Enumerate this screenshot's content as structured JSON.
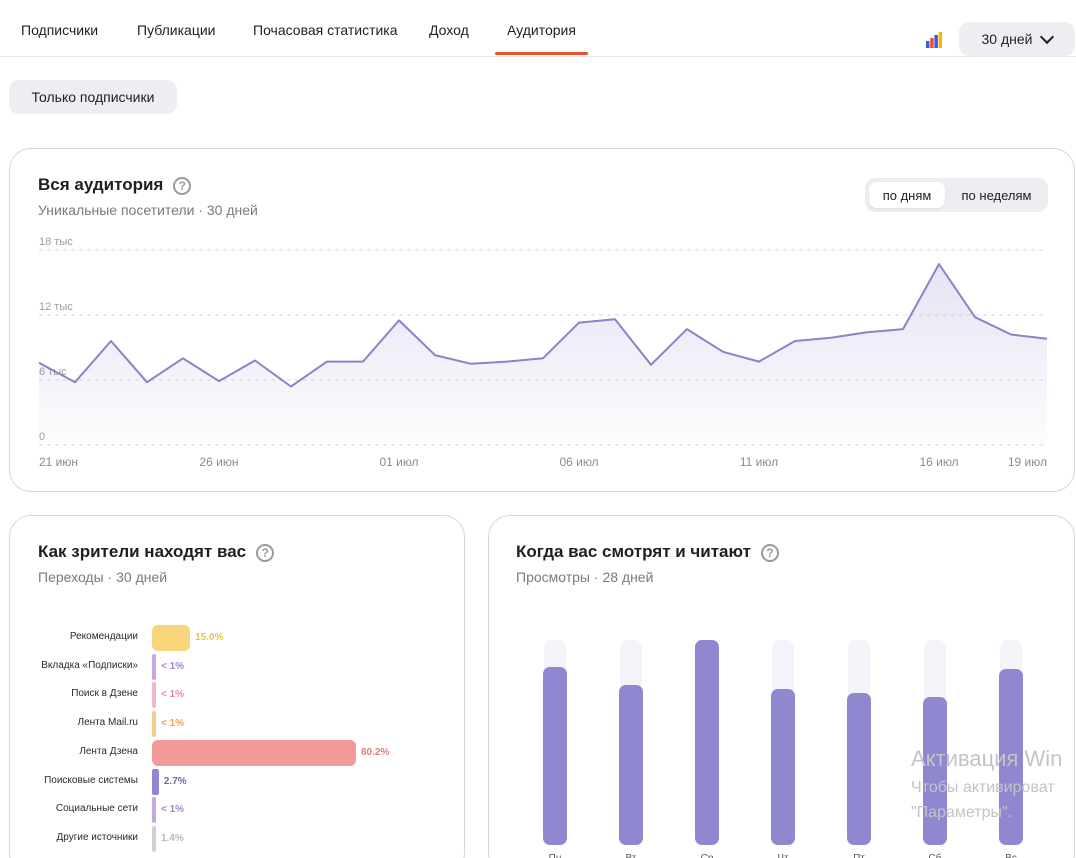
{
  "nav": {
    "tabs": [
      {
        "label": "Подписчики"
      },
      {
        "label": "Публикации"
      },
      {
        "label": "Почасовая статистика"
      },
      {
        "label": "Доход"
      },
      {
        "label": "Аудитория"
      }
    ],
    "active_tab": "Аудитория",
    "period_label": "30 дней"
  },
  "filter": {
    "label": "Только подписчики"
  },
  "audience_card": {
    "title": "Вся аудитория",
    "subtitle": "Уникальные посетители · 30 дней",
    "toggle": [
      {
        "label": "по дням",
        "selected": true
      },
      {
        "label": "по неделям",
        "selected": false
      }
    ],
    "help_icon": "question-circle-icon",
    "chart_data": {
      "type": "area",
      "xlabel": "",
      "ylabel": "",
      "ylim": [
        0,
        18000
      ],
      "y_ticks": [
        "18 тыс",
        "12 тыс",
        "6 тыс",
        "0"
      ],
      "y_tick_values": [
        18000,
        12000,
        6000,
        0
      ],
      "x_tick_labels": [
        "21 июн",
        "26 июн",
        "01 июл",
        "06 июл",
        "11 июл",
        "16 июл",
        "19 июл"
      ],
      "x_tick_index": [
        0,
        5,
        10,
        15,
        20,
        25,
        28
      ],
      "grid": true,
      "color": "#8b82c9",
      "series": [
        {
          "values": [
            7600,
            5800,
            9600,
            5800,
            8000,
            5900,
            7800,
            5400,
            7700,
            7700,
            11500,
            8300,
            7500,
            7700,
            8000,
            11300,
            11600,
            7400,
            10700,
            8600,
            7700,
            9600,
            9900,
            10400,
            10700,
            16700,
            11800,
            10200,
            9800
          ]
        }
      ]
    }
  },
  "sources_card": {
    "title": "Как зрители находят вас",
    "subtitle": "Переходы · 30 дней",
    "chart_data": {
      "type": "bar",
      "orientation": "horizontal",
      "categories": [
        "Рекомендации",
        "Вкладка «Подписки»",
        "Поиск в Дзене",
        "Лента Mail.ru",
        "Лента Дзена",
        "Поисковые системы",
        "Социальные сети",
        "Другие источники"
      ],
      "values": [
        15.0,
        0.5,
        0.5,
        0.5,
        80.2,
        2.7,
        0.5,
        1.4
      ],
      "value_labels": [
        "15.0%",
        "< 1%",
        "< 1%",
        "< 1%",
        "80.2%",
        "2.7%",
        "< 1%",
        "1.4%"
      ],
      "colors": [
        "#f8d57a",
        "#c8a8e0",
        "#f2b8c4",
        "#f6c88a",
        "#f19a98",
        "#8f88d1",
        "#c8a8e0",
        "#d0d0d4"
      ],
      "label_colors": [
        "#e8c45a",
        "#a884c8",
        "#e48aa0",
        "#e8a458",
        "#e47c7a",
        "#6f68b8",
        "#a884c8",
        "#b8b8bc"
      ]
    }
  },
  "weekday_card": {
    "title": "Когда вас смотрят и читают",
    "subtitle": "Просмотры · 28 дней",
    "chart_data": {
      "type": "bar",
      "categories": [
        "Пн",
        "Вт",
        "Ср",
        "Чт",
        "Пт",
        "Сб",
        "Вс"
      ],
      "values": [
        87,
        78,
        100,
        76,
        74,
        72,
        86
      ],
      "ylim": [
        0,
        100
      ],
      "color": "#8f88d1"
    }
  },
  "watermark": {
    "line1": "Активация Win",
    "line2": "Чтобы активироват",
    "line3": "\"Параметры\"."
  }
}
